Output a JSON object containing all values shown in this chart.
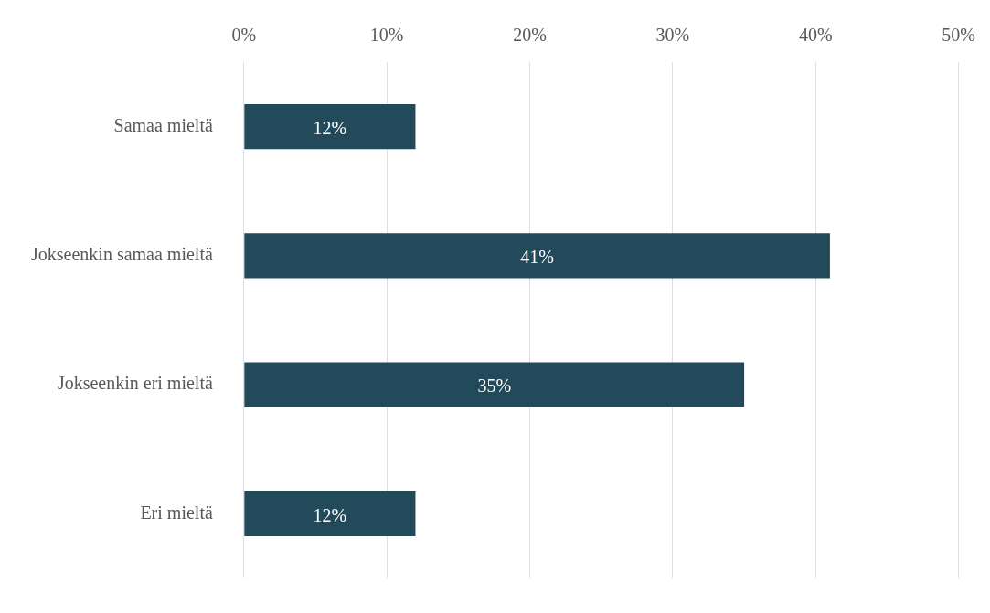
{
  "chart_data": {
    "type": "bar",
    "orientation": "horizontal",
    "categories": [
      "Samaa mieltä",
      "Jokseenkin samaa mieltä",
      "Jokseenkin eri mieltä",
      "Eri mieltä"
    ],
    "values": [
      12,
      41,
      35,
      12
    ],
    "color": "#234a5a",
    "value_labels": [
      "12%",
      "41%",
      "35%",
      "12%"
    ],
    "xlim": [
      0,
      50
    ],
    "xticks": [
      {
        "value": 0,
        "label": "0%"
      },
      {
        "value": 10,
        "label": "10%"
      },
      {
        "value": 20,
        "label": "20%"
      },
      {
        "value": 30,
        "label": "30%"
      },
      {
        "value": 40,
        "label": "40%"
      },
      {
        "value": 50,
        "label": "50%"
      }
    ],
    "grid": "x",
    "legend": false
  }
}
